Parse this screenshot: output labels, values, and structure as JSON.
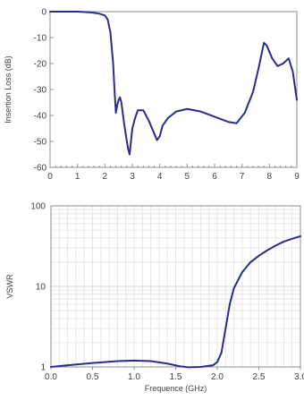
{
  "chart_data": [
    {
      "type": "line",
      "title": "",
      "ylabel": "Insertion Loss (dB)",
      "xlabel": "",
      "xlim": [
        0,
        9
      ],
      "ylim": [
        -60,
        0
      ],
      "xticks": [
        0,
        1,
        2,
        3,
        4,
        5,
        6,
        7,
        8,
        9
      ],
      "yticks": [
        0,
        -10,
        -20,
        -30,
        -40,
        -50,
        -60
      ],
      "grid": false,
      "series": [
        {
          "color": "#2b2b8c",
          "x": [
            0,
            0.5,
            1.0,
            1.5,
            1.8,
            2.0,
            2.1,
            2.2,
            2.3,
            2.35,
            2.4,
            2.45,
            2.5,
            2.55,
            2.6,
            2.65,
            2.7,
            2.8,
            2.85,
            2.9,
            2.95,
            3.0,
            3.1,
            3.2,
            3.4,
            3.6,
            3.8,
            3.9,
            4.0,
            4.1,
            4.3,
            4.6,
            5.0,
            5.5,
            6.0,
            6.5,
            6.8,
            7.1,
            7.4,
            7.6,
            7.8,
            7.9,
            8.1,
            8.3,
            8.5,
            8.7,
            8.85,
            9.0
          ],
          "y": [
            0,
            0,
            0,
            -0.3,
            -0.8,
            -1.5,
            -3,
            -8,
            -20,
            -30,
            -39,
            -36,
            -34,
            -33,
            -35,
            -39,
            -43,
            -50,
            -53,
            -55,
            -50,
            -45,
            -41,
            -38,
            -38,
            -42,
            -47,
            -49.5,
            -48,
            -44,
            -41,
            -38.5,
            -37.5,
            -38.5,
            -40.5,
            -42.5,
            -43,
            -39,
            -31,
            -22,
            -12,
            -13,
            -18,
            -21,
            -20,
            -18,
            -23,
            -34
          ]
        }
      ]
    },
    {
      "type": "line",
      "title": "",
      "ylabel": "VSWR",
      "xlabel": "Frequence (GHz)",
      "xlim": [
        0,
        3
      ],
      "ylim": [
        1,
        100
      ],
      "yscale": "log",
      "xticks": [
        0,
        0.5,
        1,
        1.5,
        2,
        2.5,
        3
      ],
      "xtick_labels": [
        "0.0",
        "0.5",
        "1.0",
        "1.5",
        "2.0",
        "2.5",
        "3.0"
      ],
      "yticks": [
        1,
        10,
        100
      ],
      "grid": true,
      "series": [
        {
          "color": "#2b2b8c",
          "x": [
            0,
            0.2,
            0.5,
            0.8,
            1.0,
            1.2,
            1.4,
            1.55,
            1.65,
            1.8,
            1.95,
            2.0,
            2.05,
            2.1,
            2.15,
            2.2,
            2.3,
            2.4,
            2.5,
            2.6,
            2.7,
            2.8,
            2.9,
            3.0
          ],
          "y": [
            1.0,
            1.05,
            1.12,
            1.18,
            1.2,
            1.18,
            1.1,
            1.02,
            0.99,
            1.0,
            1.05,
            1.15,
            1.5,
            3.0,
            6.0,
            9.5,
            15,
            20,
            24,
            28,
            32,
            36,
            39,
            42
          ]
        }
      ]
    }
  ]
}
